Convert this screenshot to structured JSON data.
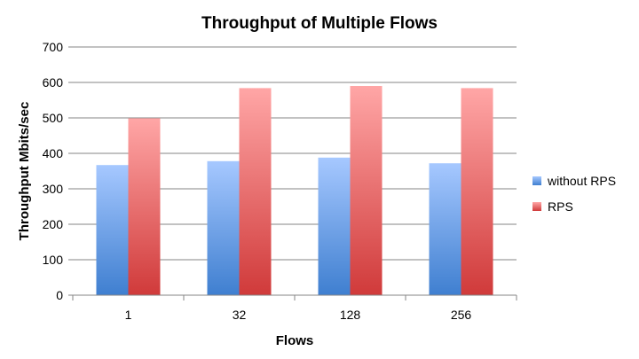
{
  "chart_data": {
    "type": "bar",
    "title": "Throughput of Multiple Flows",
    "xlabel": "Flows",
    "ylabel": "Throughput Mbits/sec",
    "categories": [
      "1",
      "32",
      "128",
      "256"
    ],
    "series": [
      {
        "name": "without RPS",
        "values": [
          367,
          378,
          388,
          372
        ],
        "color_top": "#a6c8ff",
        "color_bottom": "#3f7fd0"
      },
      {
        "name": "RPS",
        "values": [
          499,
          584,
          590,
          584
        ],
        "color_top": "#ffa6a6",
        "color_bottom": "#d03a3a"
      }
    ],
    "ylim": [
      0,
      700
    ],
    "yticks": [
      0,
      100,
      200,
      300,
      400,
      500,
      600,
      700
    ],
    "grid": true,
    "legend_position": "right"
  }
}
